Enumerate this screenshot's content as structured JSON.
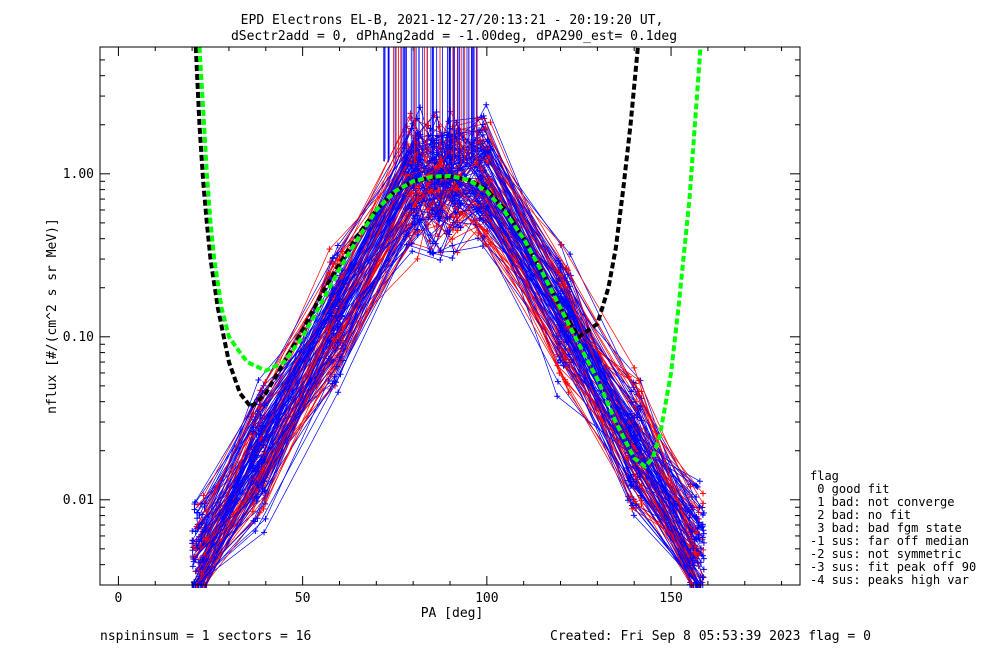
{
  "chart_data": {
    "type": "line",
    "title_line1": "EPD Electrons EL-B, 2021-12-27/20:13:21 - 20:19:20 UT,",
    "title_line2": "dSectr2add = 0, dPhAng2add = -1.00deg, dPA290_est=   0.1deg",
    "xlabel": "PA [deg]",
    "ylabel": "nflux [#/(cm^2 s sr MeV)]",
    "xlim": [
      -5,
      185
    ],
    "ylim": [
      0.003,
      6.0
    ],
    "yscale": "log",
    "x_ticks": [
      0,
      50,
      100,
      150
    ],
    "x_tick_labels": [
      "0",
      "50",
      "100",
      "150"
    ],
    "y_ticks": [
      0.01,
      0.1,
      1.0
    ],
    "y_tick_labels": [
      "0.01",
      "0.10",
      "1.00"
    ],
    "colors": {
      "blue": "#0000ff",
      "red": "#ff0000",
      "green": "#00ff00",
      "black": "#000000"
    },
    "fit_curves": [
      {
        "color": "#000000",
        "x": [
          21,
          22,
          23,
          24,
          25,
          27,
          30,
          33,
          36,
          40,
          45,
          50,
          55,
          60,
          65,
          70,
          75,
          80,
          85,
          90,
          95,
          100,
          105,
          110,
          115,
          120,
          125,
          130,
          133,
          135,
          137,
          139,
          141
        ],
        "y": [
          6.0,
          2.0,
          0.9,
          0.5,
          0.3,
          0.15,
          0.07,
          0.045,
          0.037,
          0.045,
          0.07,
          0.11,
          0.18,
          0.28,
          0.42,
          0.6,
          0.78,
          0.9,
          0.95,
          0.96,
          0.92,
          0.8,
          0.6,
          0.4,
          0.25,
          0.15,
          0.1,
          0.12,
          0.2,
          0.35,
          0.8,
          2.0,
          6.0
        ]
      },
      {
        "color": "#00ff00",
        "x": [
          22,
          23,
          24,
          25,
          26,
          28,
          30,
          33,
          35,
          38,
          40,
          45,
          50,
          55,
          60,
          65,
          70,
          75,
          80,
          85,
          90,
          95,
          100,
          105,
          110,
          115,
          120,
          125,
          130,
          135,
          140,
          143,
          145,
          147,
          150,
          152,
          155,
          158
        ],
        "y": [
          6.0,
          2.5,
          1.0,
          0.5,
          0.3,
          0.15,
          0.1,
          0.08,
          0.07,
          0.065,
          0.062,
          0.07,
          0.1,
          0.16,
          0.26,
          0.4,
          0.6,
          0.78,
          0.9,
          0.96,
          0.97,
          0.92,
          0.78,
          0.58,
          0.4,
          0.25,
          0.15,
          0.09,
          0.055,
          0.03,
          0.018,
          0.016,
          0.018,
          0.025,
          0.06,
          0.15,
          0.7,
          6.0
        ]
      }
    ],
    "data_envelope": {
      "description_free": true,
      "pa_sampled": [
        22,
        24,
        38,
        40,
        59,
        60,
        77,
        80,
        82,
        86,
        91,
        95,
        99,
        100,
        121,
        123,
        139,
        140,
        156,
        158
      ]
    }
  },
  "footer": {
    "left": "nspininsum =  1  sectors = 16",
    "right": "Created: Fri Sep  8 05:53:39 2023   flag = 0"
  },
  "legend": {
    "title": "flag",
    "entries": [
      " 0 good fit",
      " 1 bad: not converge",
      " 2 bad: no fit",
      " 3 bad: bad fgm state",
      "-1 sus: far off median",
      "-2 sus: not symmetric",
      "-3 sus: fit peak off 90",
      "-4 sus: peaks high var"
    ]
  }
}
